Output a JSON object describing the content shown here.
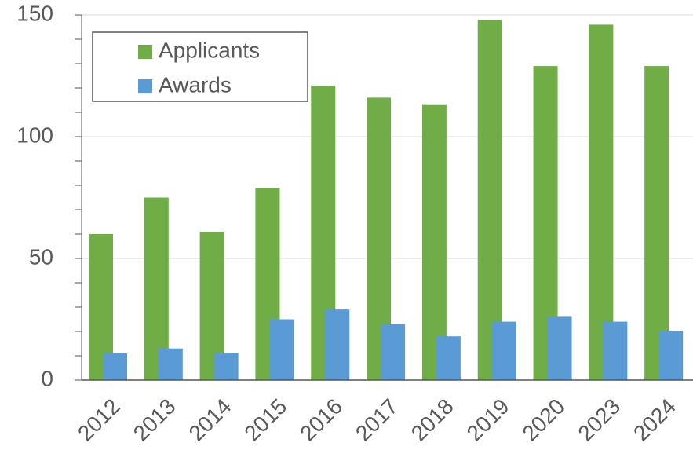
{
  "chart_data": {
    "type": "bar",
    "categories": [
      "2012",
      "2013",
      "2014",
      "2015",
      "2016",
      "2017",
      "2018",
      "2019",
      "2020",
      "2023",
      "2024"
    ],
    "series": [
      {
        "name": "Applicants",
        "color": "#70ad47",
        "values": [
          60,
          75,
          61,
          79,
          121,
          116,
          113,
          148,
          129,
          146,
          129
        ]
      },
      {
        "name": "Awards",
        "color": "#5b9bd5",
        "values": [
          11,
          13,
          11,
          25,
          29,
          23,
          18,
          24,
          26,
          24,
          20
        ]
      }
    ],
    "ylim": [
      0,
      150
    ],
    "yticks": [
      0,
      50,
      100,
      150
    ],
    "grid": true,
    "legend": "upper left"
  }
}
